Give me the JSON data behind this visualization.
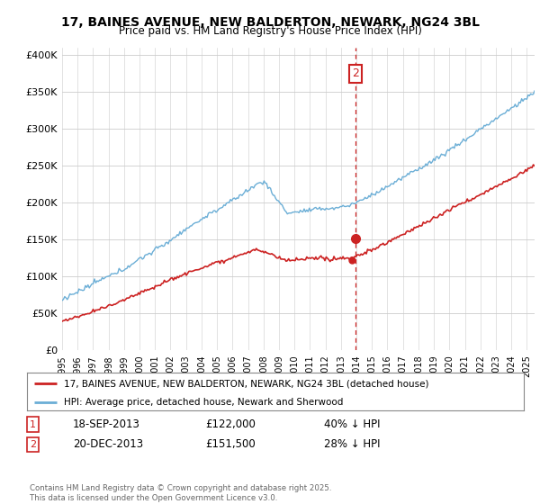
{
  "title_line1": "17, BAINES AVENUE, NEW BALDERTON, NEWARK, NG24 3BL",
  "title_line2": "Price paid vs. HM Land Registry's House Price Index (HPI)",
  "ylabel_ticks": [
    "£0",
    "£50K",
    "£100K",
    "£150K",
    "£200K",
    "£250K",
    "£300K",
    "£350K",
    "£400K"
  ],
  "ytick_values": [
    0,
    50000,
    100000,
    150000,
    200000,
    250000,
    300000,
    350000,
    400000
  ],
  "ylim": [
    0,
    410000
  ],
  "xlim_start": 1995.0,
  "xlim_end": 2025.5,
  "hpi_color": "#6baed6",
  "price_color": "#cc2222",
  "vline_color": "#cc2222",
  "legend_label_red": "17, BAINES AVENUE, NEW BALDERTON, NEWARK, NG24 3BL (detached house)",
  "legend_label_blue": "HPI: Average price, detached house, Newark and Sherwood",
  "transaction1_date": "18-SEP-2013",
  "transaction1_price": "£122,000",
  "transaction1_hpi": "40% ↓ HPI",
  "transaction2_date": "20-DEC-2013",
  "transaction2_price": "£151,500",
  "transaction2_hpi": "28% ↓ HPI",
  "footer": "Contains HM Land Registry data © Crown copyright and database right 2025.\nThis data is licensed under the Open Government Licence v3.0.",
  "background_color": "#ffffff",
  "plot_bg_color": "#ffffff"
}
